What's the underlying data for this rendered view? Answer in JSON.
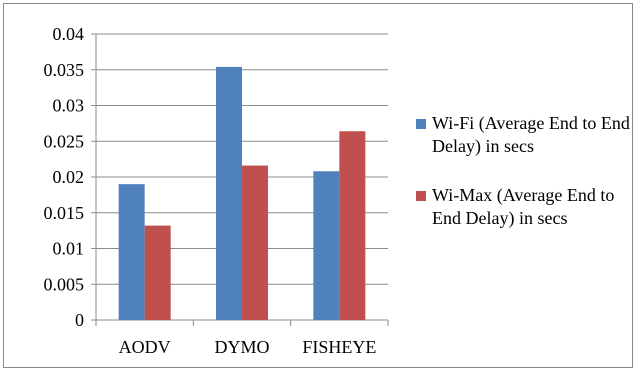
{
  "chart_data": {
    "type": "bar",
    "categories": [
      "AODV",
      "DYMO",
      "FISHEYE"
    ],
    "series": [
      {
        "name": "Wi-Fi (Average End to End Delay) in secs",
        "color": "#4f81bd",
        "values": [
          0.019,
          0.0354,
          0.0208
        ]
      },
      {
        "name": "Wi-Max (Average End to End Delay) in secs",
        "color": "#c0504d",
        "values": [
          0.0132,
          0.0216,
          0.0264
        ]
      }
    ],
    "y_ticks": [
      "0",
      "0.005",
      "0.01",
      "0.015",
      "0.02",
      "0.025",
      "0.03",
      "0.035",
      "0.04"
    ],
    "ylim": [
      0,
      0.04
    ],
    "grid": true,
    "legend_position": "right",
    "title": "",
    "xlabel": "",
    "ylabel": ""
  }
}
